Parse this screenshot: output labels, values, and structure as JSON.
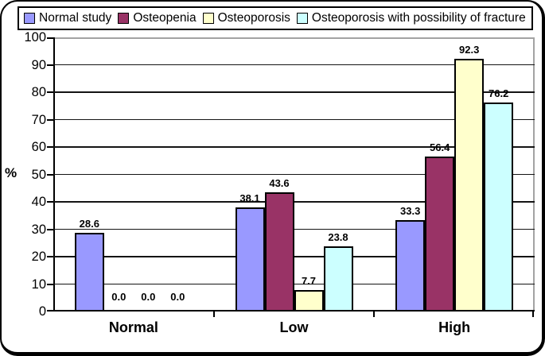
{
  "chart_data": {
    "type": "bar",
    "title": "",
    "categories": [
      "Normal",
      "Low",
      "High"
    ],
    "series": [
      {
        "name": "Normal study",
        "color": "#9999FF",
        "values": [
          28.6,
          38.1,
          33.3
        ]
      },
      {
        "name": "Osteopenia",
        "color": "#993366",
        "values": [
          0.0,
          43.6,
          56.4
        ]
      },
      {
        "name": "Osteoporosis",
        "color": "#FFFFCC",
        "values": [
          0.0,
          7.7,
          92.3
        ]
      },
      {
        "name": "Osteoporosis with possibility of fracture",
        "color": "#CCFFFF",
        "values": [
          0.0,
          23.8,
          76.2
        ]
      }
    ],
    "value_label_format": "one_decimal",
    "xlabel": "",
    "ylabel": "%",
    "ylim": [
      0,
      100
    ],
    "yticks": [
      0,
      10,
      20,
      30,
      40,
      50,
      60,
      70,
      80,
      90,
      100
    ],
    "grid": true,
    "legend_position": "top",
    "bar_border_color": "#000000",
    "gridline_color": "#141414",
    "plot_border_color": "#a3a3a3",
    "axis_color": "#000000"
  }
}
